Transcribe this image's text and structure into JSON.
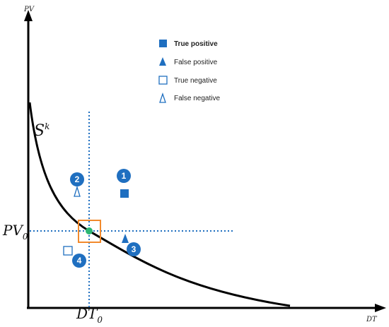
{
  "axes": {
    "x_label": "DT",
    "y_label": "PV"
  },
  "curve_label": {
    "base": "S",
    "superscript": "k"
  },
  "reference_x": {
    "base": "DT",
    "subscript": "0"
  },
  "reference_y": {
    "base": "PV",
    "subscript": "0"
  },
  "legend": [
    {
      "symbol": "filled-square",
      "label": "True positive",
      "bold": true
    },
    {
      "symbol": "filled-triangle",
      "label": "False positive",
      "bold": false
    },
    {
      "symbol": "open-square",
      "label": "True negative",
      "bold": false
    },
    {
      "symbol": "open-triangle",
      "label": "False negative",
      "bold": false
    }
  ],
  "badges": [
    "1",
    "2",
    "3",
    "4"
  ],
  "colors": {
    "accent_blue": "#1f6fc0",
    "curve": "#000000",
    "dotted_line": "#1f6fc0",
    "highlight_box": "#f28a2c",
    "center_point": "#2bb673"
  }
}
